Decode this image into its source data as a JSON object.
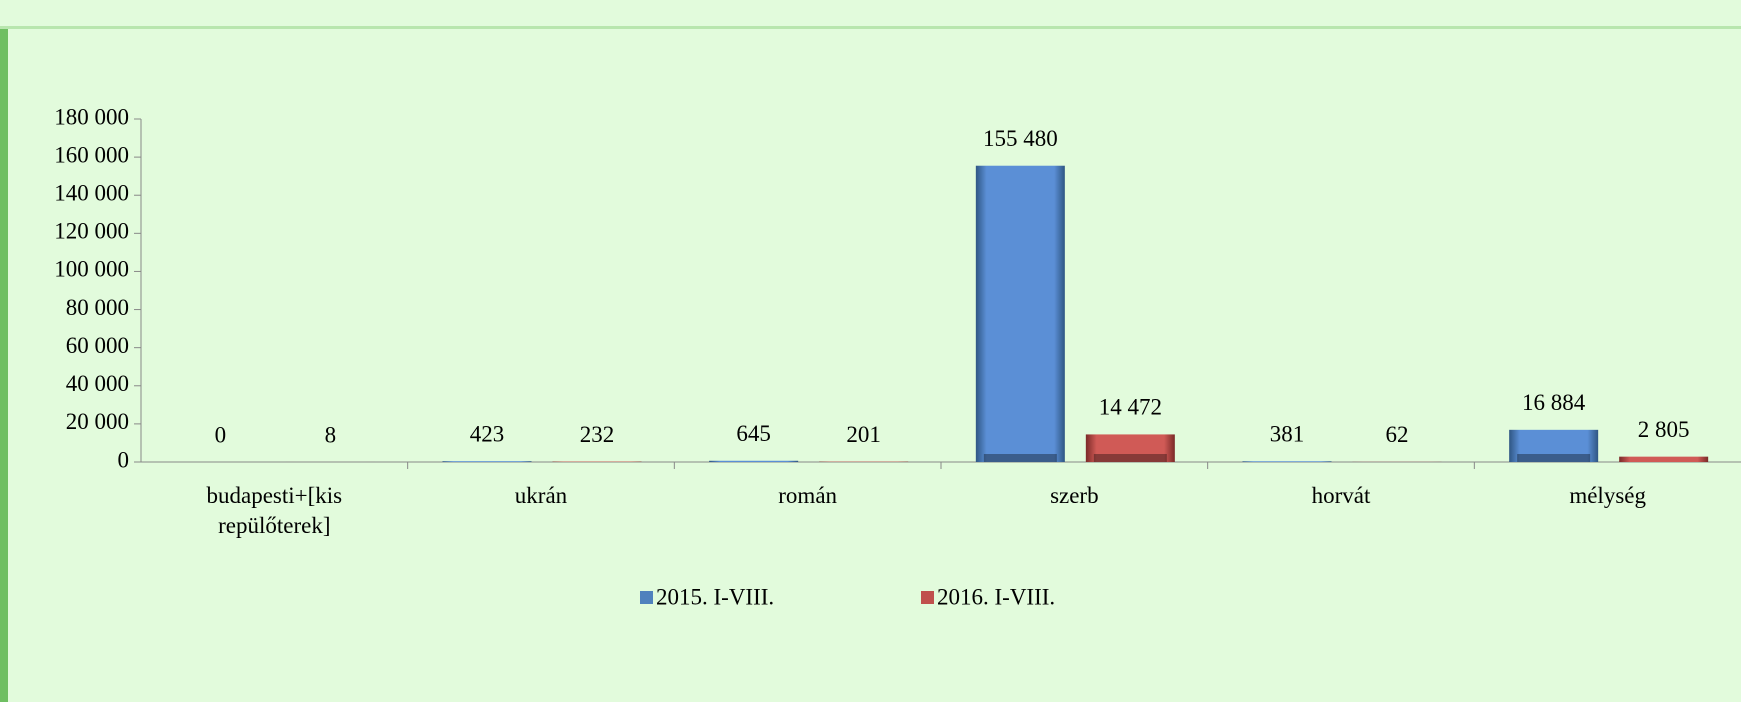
{
  "chart_data": {
    "type": "bar",
    "categories": [
      "budapesti+[kis repülőterek]",
      "ukrán",
      "román",
      "szerb",
      "horvát",
      "mélység"
    ],
    "series": [
      {
        "name": "2015. I-VIII.",
        "color": "#4f81bd",
        "values": [
          0,
          423,
          645,
          155480,
          381,
          16884
        ],
        "value_labels": [
          "0",
          "423",
          "645",
          "155 480",
          "381",
          "16 884"
        ]
      },
      {
        "name": "2016. I-VIII.",
        "color": "#c0504d",
        "values": [
          8,
          232,
          201,
          14472,
          62,
          2805
        ],
        "value_labels": [
          "8",
          "232",
          "201",
          "14 472",
          "62",
          "2 805"
        ]
      }
    ],
    "ylim": [
      0,
      180000
    ],
    "yticks": [
      {
        "value": 0,
        "label": "0"
      },
      {
        "value": 20000,
        "label": "20 000"
      },
      {
        "value": 40000,
        "label": "40 000"
      },
      {
        "value": 60000,
        "label": "60 000"
      },
      {
        "value": 80000,
        "label": "80 000"
      },
      {
        "value": 100000,
        "label": "100 000"
      },
      {
        "value": 120000,
        "label": "120 000"
      },
      {
        "value": 140000,
        "label": "140 000"
      },
      {
        "value": 160000,
        "label": "160 000"
      },
      {
        "value": 180000,
        "label": "180 000"
      }
    ],
    "grid": false
  }
}
